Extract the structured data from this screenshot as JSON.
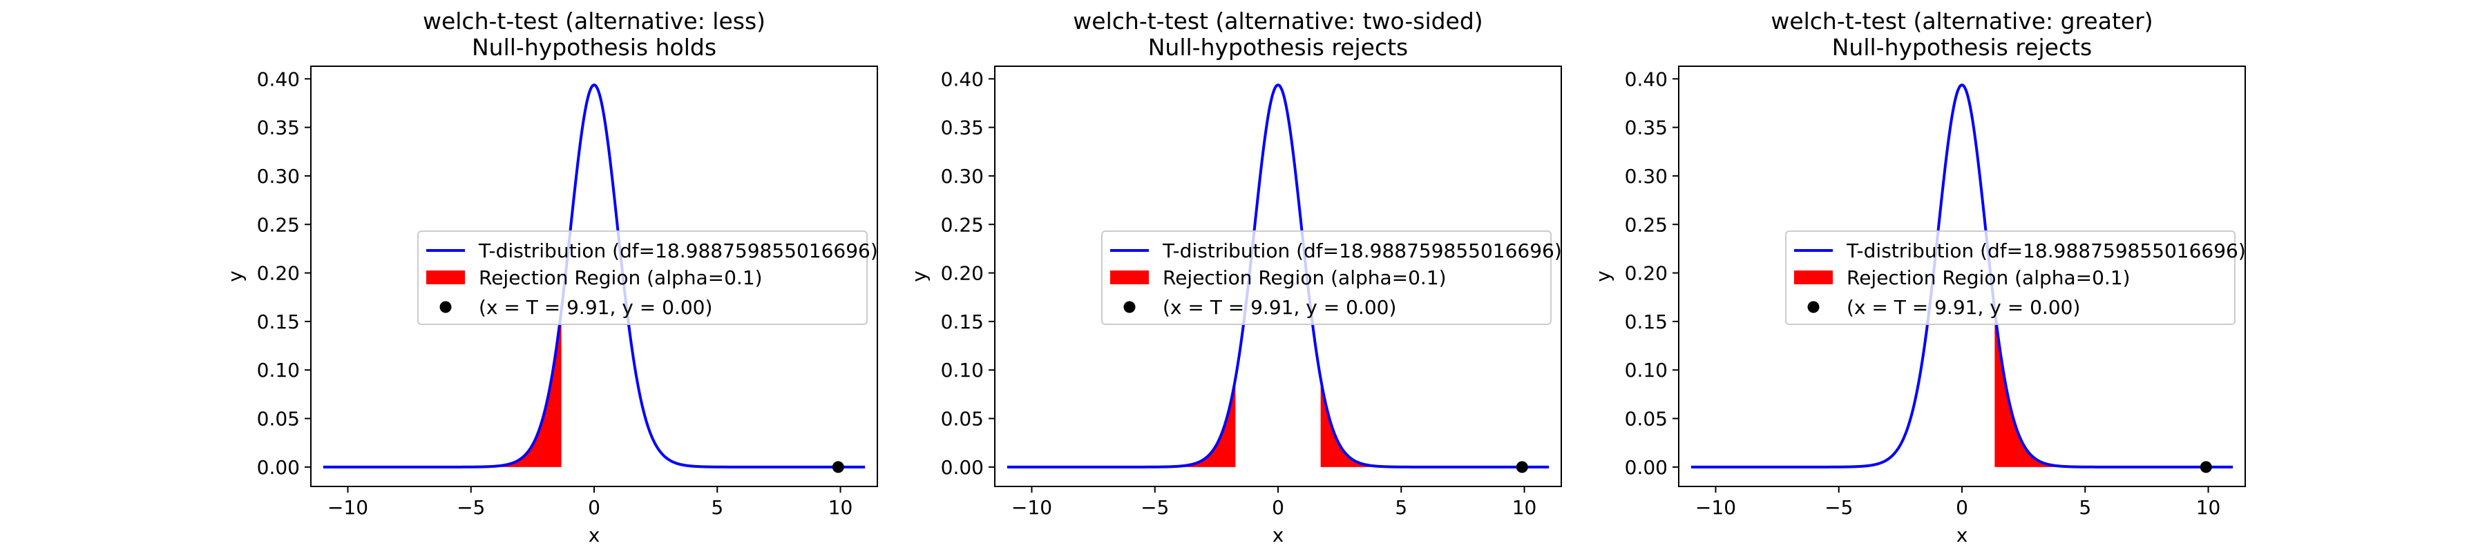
{
  "chart_data": [
    {
      "type": "line",
      "title": "welch-t-test (alternative: less)",
      "subtitle": "Null-hypothesis holds",
      "xlabel": "x",
      "ylabel": "y",
      "xlim": [
        -11.5,
        11.5
      ],
      "ylim": [
        -0.02,
        0.413
      ],
      "xticks": [
        -10,
        -5,
        0,
        5,
        10
      ],
      "xtick_labels": [
        "−10",
        "−5",
        "0",
        "5",
        "10"
      ],
      "yticks": [
        0.0,
        0.05,
        0.1,
        0.15,
        0.2,
        0.25,
        0.3,
        0.35,
        0.4
      ],
      "ytick_labels": [
        "0.00",
        "0.05",
        "0.10",
        "0.15",
        "0.20",
        "0.25",
        "0.30",
        "0.35",
        "0.40"
      ],
      "grid": false,
      "legend_placement": "center-right",
      "distribution": {
        "name": "T-distribution",
        "df": 18.988759855016696,
        "x_range": [
          -11,
          11
        ],
        "color": "#0000ff"
      },
      "rejection_regions": [
        {
          "from": -11,
          "to": -1.328
        }
      ],
      "rejection_color": "#ff0000",
      "statistic_point": {
        "x": 9.91,
        "y": 0.0,
        "color": "#000000"
      },
      "legend": [
        {
          "label": "T-distribution (df=18.988759855016696)",
          "kind": "line"
        },
        {
          "label": "Rejection Region (alpha=0.1)",
          "kind": "patch"
        },
        {
          "label": "(x = T = 9.91, y = 0.00)",
          "kind": "marker"
        }
      ]
    },
    {
      "type": "line",
      "title": "welch-t-test (alternative: two-sided)",
      "subtitle": "Null-hypothesis rejects",
      "xlabel": "x",
      "ylabel": "y",
      "xlim": [
        -11.5,
        11.5
      ],
      "ylim": [
        -0.02,
        0.413
      ],
      "xticks": [
        -10,
        -5,
        0,
        5,
        10
      ],
      "xtick_labels": [
        "−10",
        "−5",
        "0",
        "5",
        "10"
      ],
      "yticks": [
        0.0,
        0.05,
        0.1,
        0.15,
        0.2,
        0.25,
        0.3,
        0.35,
        0.4
      ],
      "ytick_labels": [
        "0.00",
        "0.05",
        "0.10",
        "0.15",
        "0.20",
        "0.25",
        "0.30",
        "0.35",
        "0.40"
      ],
      "grid": false,
      "legend_placement": "center-right",
      "distribution": {
        "name": "T-distribution",
        "df": 18.988759855016696,
        "x_range": [
          -11,
          11
        ],
        "color": "#0000ff"
      },
      "rejection_regions": [
        {
          "from": -11,
          "to": -1.729
        },
        {
          "from": 1.729,
          "to": 11
        }
      ],
      "rejection_color": "#ff0000",
      "statistic_point": {
        "x": 9.91,
        "y": 0.0,
        "color": "#000000"
      },
      "legend": [
        {
          "label": "T-distribution (df=18.988759855016696)",
          "kind": "line"
        },
        {
          "label": "Rejection Region (alpha=0.1)",
          "kind": "patch"
        },
        {
          "label": "(x = T = 9.91, y = 0.00)",
          "kind": "marker"
        }
      ]
    },
    {
      "type": "line",
      "title": "welch-t-test (alternative: greater)",
      "subtitle": "Null-hypothesis rejects",
      "xlabel": "x",
      "ylabel": "y",
      "xlim": [
        -11.5,
        11.5
      ],
      "ylim": [
        -0.02,
        0.413
      ],
      "xticks": [
        -10,
        -5,
        0,
        5,
        10
      ],
      "xtick_labels": [
        "−10",
        "−5",
        "0",
        "5",
        "10"
      ],
      "yticks": [
        0.0,
        0.05,
        0.1,
        0.15,
        0.2,
        0.25,
        0.3,
        0.35,
        0.4
      ],
      "ytick_labels": [
        "0.00",
        "0.05",
        "0.10",
        "0.15",
        "0.20",
        "0.25",
        "0.30",
        "0.35",
        "0.40"
      ],
      "grid": false,
      "legend_placement": "center-right",
      "distribution": {
        "name": "T-distribution",
        "df": 18.988759855016696,
        "x_range": [
          -11,
          11
        ],
        "color": "#0000ff"
      },
      "rejection_regions": [
        {
          "from": 1.328,
          "to": 11
        }
      ],
      "rejection_color": "#ff0000",
      "statistic_point": {
        "x": 9.91,
        "y": 0.0,
        "color": "#000000"
      },
      "legend": [
        {
          "label": "T-distribution (df=18.988759855016696)",
          "kind": "line"
        },
        {
          "label": "Rejection Region (alpha=0.1)",
          "kind": "patch"
        },
        {
          "label": "(x = T = 9.91, y = 0.00)",
          "kind": "marker"
        }
      ]
    }
  ]
}
